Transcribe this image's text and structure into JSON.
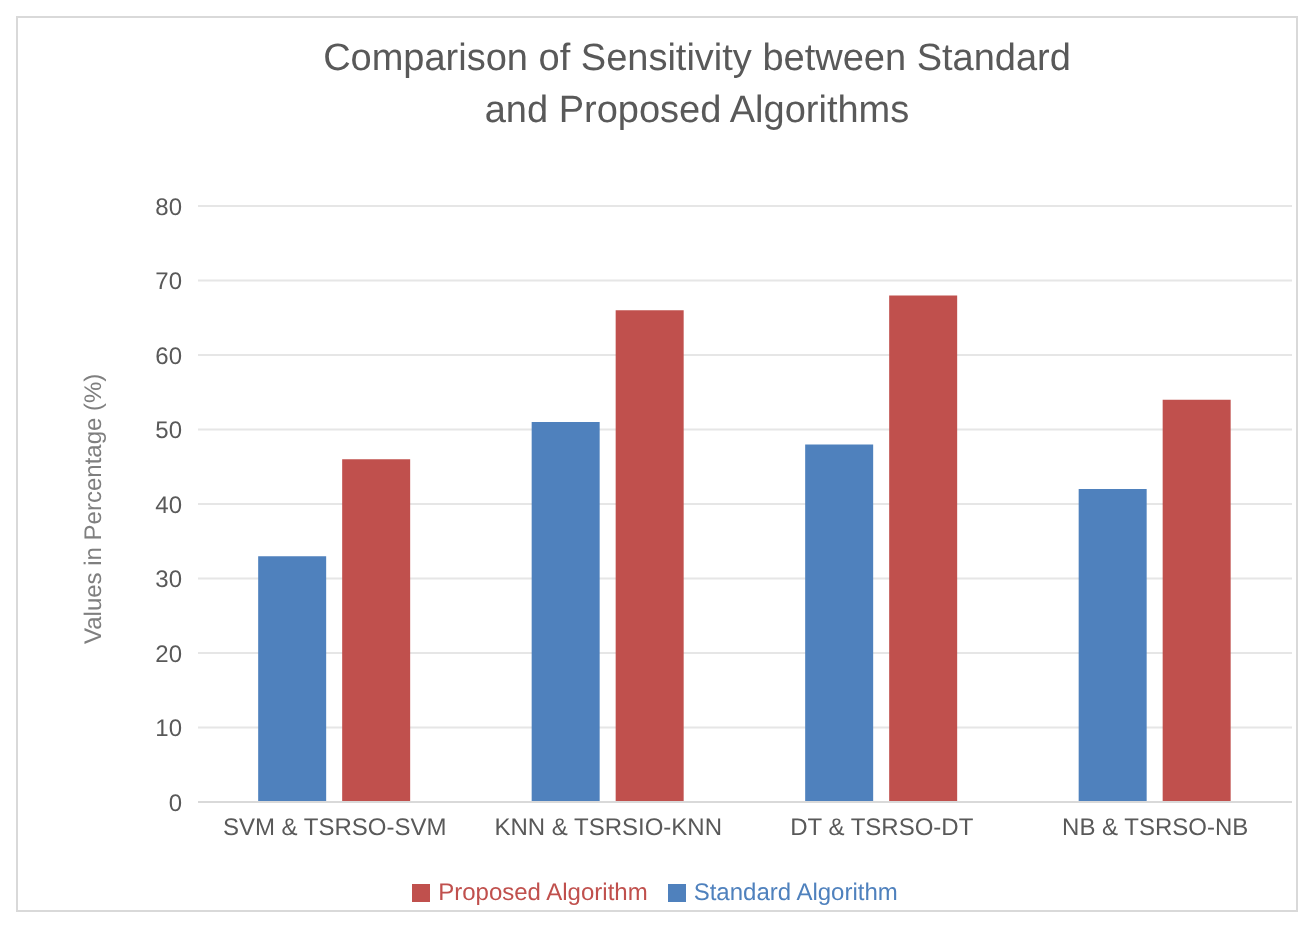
{
  "chart_data": {
    "type": "bar",
    "title": "Comparison of Sensitivity between Standard and Proposed Algorithms",
    "ylabel": "Values in Percentage (%)",
    "categories": [
      "SVM & TSRSO-SVM",
      "KNN & TSRSIO-KNN",
      "DT & TSRSO-DT",
      "NB & TSRSO-NB"
    ],
    "series": [
      {
        "name": "Standard Algorithm",
        "color": "#4f81bd",
        "values": [
          33,
          51,
          48,
          42
        ]
      },
      {
        "name": "Proposed Algorithm",
        "color": "#c0504d",
        "values": [
          46,
          66,
          68,
          54
        ]
      }
    ],
    "ylim": [
      0,
      80
    ],
    "yticks": [
      0,
      10,
      20,
      30,
      40,
      50,
      60,
      70,
      80
    ],
    "grid": "y",
    "legend": "bottom"
  }
}
